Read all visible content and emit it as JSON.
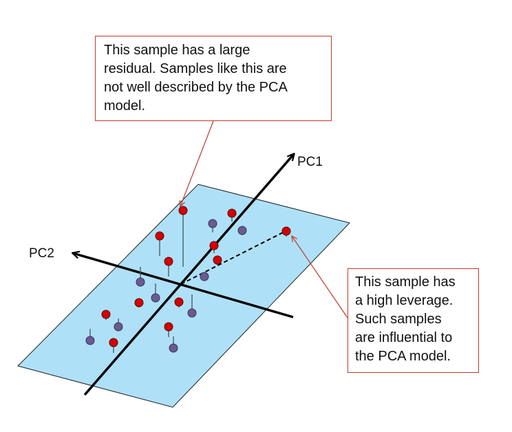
{
  "callouts": {
    "residual": "This sample has a large\nresidual. Samples like this are\nnot well described by the PCA\nmodel.",
    "leverage": "This sample has\na high leverage.\nSuch samples\nare influential to\nthe PCA model."
  },
  "axes": {
    "pc1_label": "PC1",
    "pc2_label": "PC2"
  },
  "colors": {
    "plane_fill": "#aee1f7",
    "plane_edge": "#1f1f1f",
    "sample_above": "#d30000",
    "sample_below": "#6a5a8e",
    "callout_border": "#c0392b",
    "axis": "#000000"
  }
}
